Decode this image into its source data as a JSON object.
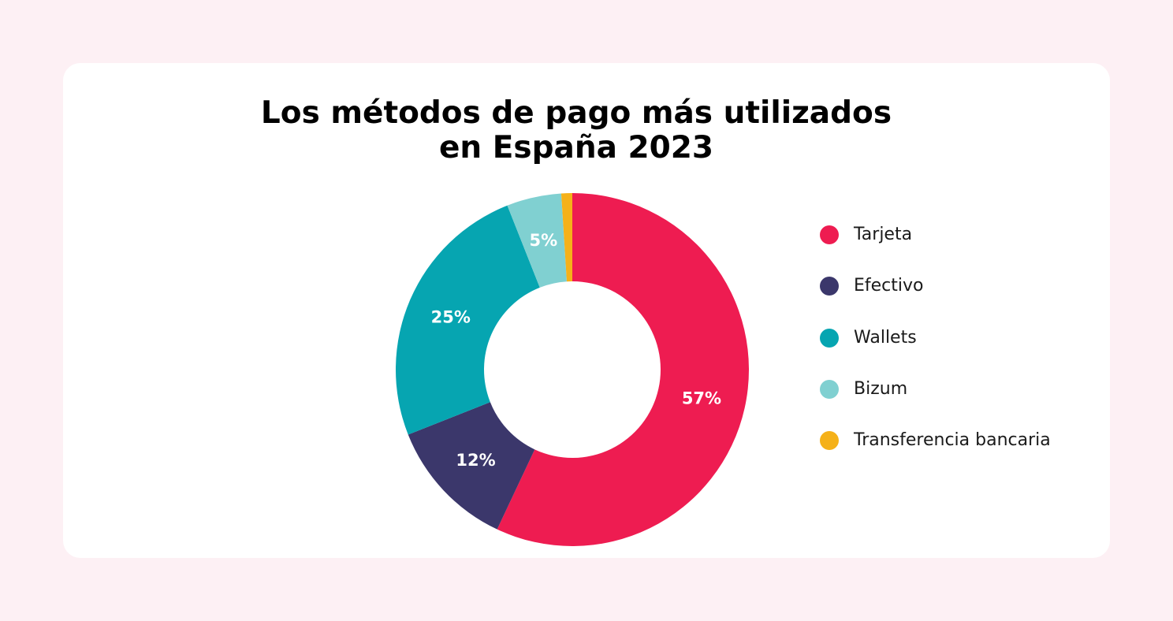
{
  "chart_data": {
    "type": "pie",
    "title": "Los métodos de pago más utilizados en España 2023",
    "title_lines": [
      "Los métodos de pago más utilizados",
      "en España 2023"
    ],
    "categories": [
      "Tarjeta",
      "Efectivo",
      "Wallets",
      "Bizum",
      "Transferencia bancaria"
    ],
    "values": [
      57,
      12,
      25,
      5,
      1
    ],
    "labels": [
      "57%",
      "12%",
      "25%",
      "5%",
      ""
    ],
    "colors": [
      "#ee1c51",
      "#3b376b",
      "#06a5b1",
      "#80d0d1",
      "#f5b119"
    ],
    "unit": "%",
    "legend_position": "right",
    "donut": true
  }
}
